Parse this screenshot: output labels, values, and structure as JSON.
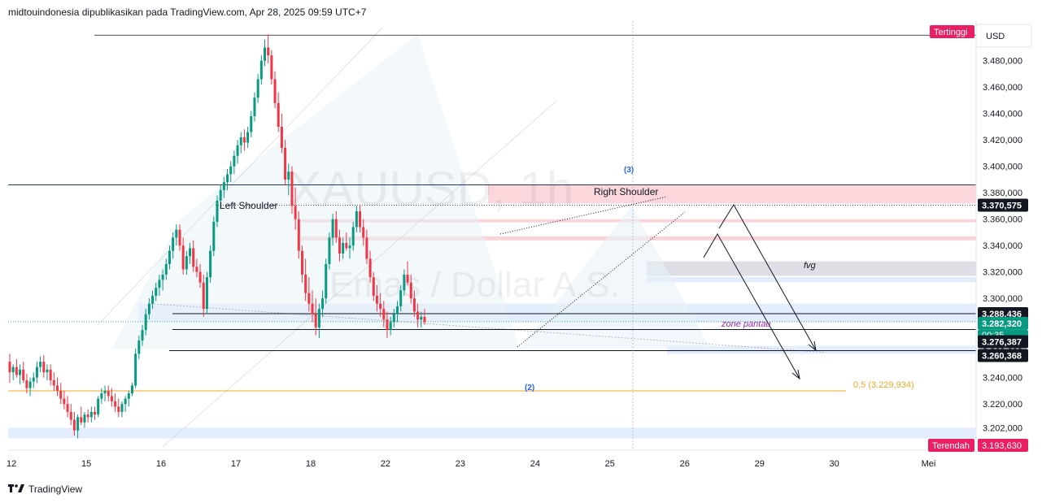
{
  "header": {
    "text": "midtouindonesia dipublikasikan pada TradingView.com, Apr 28, 2025 09:59 UTC+7"
  },
  "footer": {
    "brand": "TradingView",
    "logo": "tradingview-logo"
  },
  "chart_data": {
    "type": "candlestick",
    "symbol_watermark": "XAUUSD, 1h",
    "symbol_subtitle": "Emas / Dollar A.S.",
    "currency": "USD",
    "ylim": [
      3185,
      3510
    ],
    "y_ticks": [
      "3.202,000",
      "3.220,000",
      "3.240,000",
      "3.260,000",
      "3.280,000",
      "3.300,000",
      "3.320,000",
      "3.340,000",
      "3.360,000",
      "3.380,000",
      "3.400,000",
      "3.420,000",
      "3.440,000",
      "3.460,000",
      "3.480,000"
    ],
    "y_tick_values": [
      3202,
      3220,
      3240,
      3260,
      3280,
      3300,
      3320,
      3340,
      3360,
      3380,
      3400,
      3420,
      3440,
      3460,
      3480
    ],
    "x_ticks": [
      "12",
      "15",
      "16",
      "17",
      "18",
      "22",
      "23",
      "24",
      "25",
      "26",
      "29",
      "30",
      "Mei"
    ],
    "x_tick_index": [
      0,
      22,
      44,
      66,
      88,
      110,
      132,
      154,
      176,
      198,
      220,
      242,
      270
    ],
    "price_labels": [
      {
        "text": "Tertinggi",
        "value": 3500,
        "color": "#e91e63",
        "kind": "high"
      },
      {
        "text": "3.370,575",
        "value": 3370.575,
        "color": "#131722",
        "kind": "level"
      },
      {
        "text": "3.288,436",
        "value": 3288.436,
        "color": "#131722",
        "kind": "level"
      },
      {
        "text": "3.282,320",
        "value": 3282.32,
        "color": "#089981",
        "kind": "last"
      },
      {
        "text": "00:35",
        "value": 3274.5,
        "color": "#089981",
        "kind": "countdown"
      },
      {
        "text": "3.276,387",
        "value": 3276.387,
        "color": "#131722",
        "kind": "level"
      },
      {
        "text": "3.260,368",
        "value": 3260.368,
        "color": "#131722",
        "kind": "level"
      },
      {
        "text": "Terendah",
        "value": 3193.63,
        "color": "#e91e63",
        "kind": "low"
      },
      {
        "text": "3.193,630",
        "value": 3193.63,
        "color": "#e91e63",
        "kind": "low"
      }
    ],
    "annotations": [
      {
        "text": "Left Shoulder",
        "role": "pattern-label"
      },
      {
        "text": "Right Shoulder",
        "role": "pattern-label"
      },
      {
        "text": "(3)",
        "role": "wave-label"
      },
      {
        "text": "(2)",
        "role": "wave-label"
      },
      {
        "text": "fvg",
        "role": "zone-label"
      },
      {
        "text": "zone pantau",
        "role": "zone-label"
      },
      {
        "text": "0,5 (3.229,934)",
        "role": "fib-label",
        "value": 3229.934
      }
    ],
    "levels": {
      "high": 3500,
      "resistance_top": 3386,
      "neckline_high": 3370.575,
      "support_1": 3288.436,
      "support_2": 3276.387,
      "support_3": 3260.368,
      "fib_05": 3229.934,
      "low": 3193.63
    },
    "zones": [
      {
        "name": "supply",
        "from": 3372,
        "to": 3386,
        "color": "#f7c9cf"
      },
      {
        "name": "fvg",
        "from": 3317,
        "to": 3328,
        "color": "#d1d4dc"
      },
      {
        "name": "demand-upper",
        "from": 3282,
        "to": 3296,
        "color": "#dbe7fb"
      },
      {
        "name": "demand-lower",
        "from": 3258,
        "to": 3264,
        "color": "#dbe7fb"
      },
      {
        "name": "bottom",
        "from": 3194,
        "to": 3202,
        "color": "#dbe7fb"
      }
    ],
    "candles": [
      [
        3252,
        3258,
        3236,
        3244
      ],
      [
        3244,
        3250,
        3238,
        3248
      ],
      [
        3248,
        3254,
        3240,
        3242
      ],
      [
        3242,
        3250,
        3235,
        3246
      ],
      [
        3246,
        3252,
        3236,
        3238
      ],
      [
        3238,
        3243,
        3228,
        3232
      ],
      [
        3232,
        3240,
        3226,
        3237
      ],
      [
        3237,
        3244,
        3232,
        3240
      ],
      [
        3240,
        3252,
        3236,
        3248
      ],
      [
        3248,
        3256,
        3244,
        3252
      ],
      [
        3252,
        3257,
        3240,
        3244
      ],
      [
        3244,
        3250,
        3238,
        3246
      ],
      [
        3246,
        3250,
        3234,
        3238
      ],
      [
        3238,
        3244,
        3230,
        3234
      ],
      [
        3234,
        3240,
        3226,
        3230
      ],
      [
        3230,
        3236,
        3220,
        3224
      ],
      [
        3224,
        3230,
        3216,
        3220
      ],
      [
        3220,
        3226,
        3210,
        3214
      ],
      [
        3214,
        3220,
        3204,
        3208
      ],
      [
        3208,
        3214,
        3196,
        3200
      ],
      [
        3200,
        3212,
        3194,
        3210
      ],
      [
        3210,
        3218,
        3204,
        3206
      ],
      [
        3206,
        3214,
        3202,
        3212
      ],
      [
        3212,
        3216,
        3206,
        3210
      ],
      [
        3210,
        3218,
        3206,
        3214
      ],
      [
        3214,
        3218,
        3208,
        3212
      ],
      [
        3212,
        3226,
        3210,
        3224
      ],
      [
        3224,
        3232,
        3220,
        3228
      ],
      [
        3228,
        3234,
        3222,
        3230
      ],
      [
        3230,
        3234,
        3222,
        3226
      ],
      [
        3226,
        3232,
        3218,
        3222
      ],
      [
        3222,
        3228,
        3214,
        3218
      ],
      [
        3218,
        3224,
        3210,
        3214
      ],
      [
        3214,
        3222,
        3210,
        3220
      ],
      [
        3220,
        3226,
        3214,
        3224
      ],
      [
        3224,
        3230,
        3218,
        3228
      ],
      [
        3228,
        3236,
        3226,
        3234
      ],
      [
        3234,
        3262,
        3232,
        3258
      ],
      [
        3258,
        3272,
        3254,
        3268
      ],
      [
        3268,
        3280,
        3264,
        3276
      ],
      [
        3276,
        3292,
        3272,
        3288
      ],
      [
        3288,
        3300,
        3284,
        3296
      ],
      [
        3296,
        3306,
        3292,
        3302
      ],
      [
        3302,
        3312,
        3298,
        3308
      ],
      [
        3308,
        3318,
        3302,
        3314
      ],
      [
        3314,
        3322,
        3306,
        3318
      ],
      [
        3318,
        3330,
        3314,
        3326
      ],
      [
        3326,
        3340,
        3322,
        3336
      ],
      [
        3336,
        3350,
        3330,
        3346
      ],
      [
        3346,
        3356,
        3340,
        3352
      ],
      [
        3352,
        3356,
        3336,
        3340
      ],
      [
        3340,
        3346,
        3318,
        3322
      ],
      [
        3322,
        3336,
        3318,
        3332
      ],
      [
        3332,
        3342,
        3326,
        3338
      ],
      [
        3338,
        3344,
        3320,
        3324
      ],
      [
        3324,
        3330,
        3316,
        3320
      ],
      [
        3320,
        3326,
        3308,
        3312
      ],
      [
        3312,
        3318,
        3286,
        3292
      ],
      [
        3292,
        3320,
        3288,
        3316
      ],
      [
        3316,
        3340,
        3312,
        3336
      ],
      [
        3336,
        3362,
        3332,
        3358
      ],
      [
        3358,
        3378,
        3354,
        3374
      ],
      [
        3374,
        3386,
        3368,
        3382
      ],
      [
        3382,
        3392,
        3376,
        3388
      ],
      [
        3388,
        3398,
        3382,
        3394
      ],
      [
        3394,
        3404,
        3388,
        3400
      ],
      [
        3400,
        3412,
        3394,
        3408
      ],
      [
        3408,
        3420,
        3402,
        3416
      ],
      [
        3416,
        3426,
        3410,
        3422
      ],
      [
        3422,
        3428,
        3412,
        3418
      ],
      [
        3418,
        3430,
        3414,
        3426
      ],
      [
        3426,
        3442,
        3422,
        3438
      ],
      [
        3438,
        3456,
        3434,
        3452
      ],
      [
        3452,
        3470,
        3448,
        3466
      ],
      [
        3466,
        3484,
        3462,
        3480
      ],
      [
        3480,
        3496,
        3476,
        3490
      ],
      [
        3490,
        3500,
        3478,
        3484
      ],
      [
        3484,
        3488,
        3462,
        3466
      ],
      [
        3466,
        3472,
        3444,
        3448
      ],
      [
        3448,
        3456,
        3426,
        3430
      ],
      [
        3430,
        3440,
        3410,
        3414
      ],
      [
        3414,
        3420,
        3386,
        3390
      ],
      [
        3390,
        3402,
        3378,
        3396
      ],
      [
        3396,
        3400,
        3364,
        3370
      ],
      [
        3370,
        3384,
        3352,
        3360
      ],
      [
        3360,
        3366,
        3330,
        3336
      ],
      [
        3336,
        3340,
        3312,
        3318
      ],
      [
        3318,
        3330,
        3298,
        3304
      ],
      [
        3304,
        3316,
        3290,
        3296
      ],
      [
        3296,
        3306,
        3282,
        3288
      ],
      [
        3288,
        3300,
        3272,
        3278
      ],
      [
        3278,
        3296,
        3270,
        3292
      ],
      [
        3292,
        3306,
        3286,
        3300
      ],
      [
        3300,
        3330,
        3296,
        3326
      ],
      [
        3326,
        3350,
        3322,
        3346
      ],
      [
        3346,
        3364,
        3340,
        3360
      ],
      [
        3360,
        3366,
        3342,
        3346
      ],
      [
        3346,
        3352,
        3328,
        3334
      ],
      [
        3334,
        3346,
        3330,
        3342
      ],
      [
        3342,
        3350,
        3336,
        3338
      ],
      [
        3338,
        3346,
        3330,
        3340
      ],
      [
        3340,
        3358,
        3336,
        3354
      ],
      [
        3354,
        3370,
        3350,
        3366
      ],
      [
        3366,
        3371,
        3350,
        3354
      ],
      [
        3354,
        3360,
        3340,
        3346
      ],
      [
        3346,
        3352,
        3326,
        3330
      ],
      [
        3330,
        3336,
        3312,
        3316
      ],
      [
        3316,
        3320,
        3298,
        3302
      ],
      [
        3302,
        3310,
        3290,
        3296
      ],
      [
        3296,
        3304,
        3286,
        3292
      ],
      [
        3292,
        3298,
        3278,
        3284
      ],
      [
        3284,
        3290,
        3270,
        3276
      ],
      [
        3276,
        3286,
        3272,
        3282
      ],
      [
        3282,
        3292,
        3278,
        3288
      ],
      [
        3288,
        3298,
        3282,
        3294
      ],
      [
        3294,
        3310,
        3290,
        3306
      ],
      [
        3306,
        3322,
        3302,
        3318
      ],
      [
        3318,
        3328,
        3310,
        3312
      ],
      [
        3312,
        3318,
        3296,
        3300
      ],
      [
        3300,
        3306,
        3286,
        3290
      ],
      [
        3290,
        3296,
        3278,
        3284
      ],
      [
        3284,
        3290,
        3278,
        3286
      ],
      [
        3286,
        3292,
        3280,
        3282
      ]
    ]
  }
}
